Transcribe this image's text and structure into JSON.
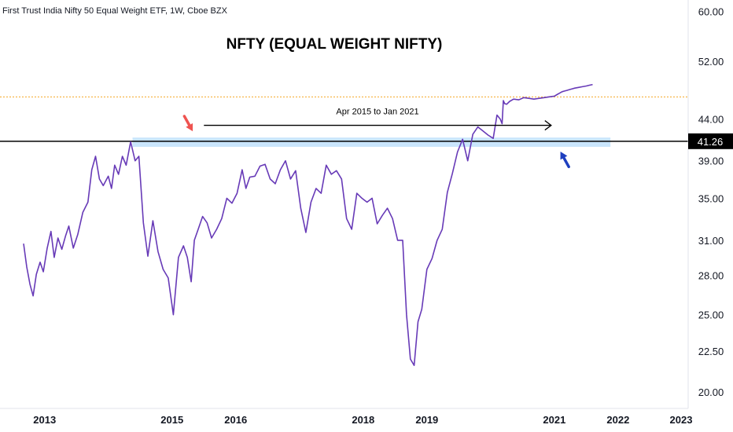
{
  "header": {
    "symbol_title": "First Trust India Nifty 50 Equal Weight ETF, 1W, Cboe BZX"
  },
  "chart_data": {
    "type": "line",
    "title": "NFTY (EQUAL WEIGHT NIFTY)",
    "y_scale": "log",
    "ylim": [
      19.6,
      61.2
    ],
    "xlim": [
      2012.3,
      2023.1
    ],
    "y_ticks": [
      "60.00",
      "52.00",
      "44.00",
      "39.00",
      "35.00",
      "31.00",
      "28.00",
      "25.00",
      "22.50",
      "20.00"
    ],
    "x_ticks": [
      "2013",
      "2015",
      "2016",
      "2018",
      "2019",
      "2021",
      "2022",
      "2023"
    ],
    "series": [
      {
        "color": "#673ab7",
        "x": [
          2012.67,
          2012.72,
          2012.77,
          2012.82,
          2012.87,
          2012.93,
          2012.98,
          2013.04,
          2013.1,
          2013.15,
          2013.21,
          2013.27,
          2013.33,
          2013.38,
          2013.45,
          2013.52,
          2013.6,
          2013.68,
          2013.74,
          2013.8,
          2013.86,
          2013.92,
          2014.0,
          2014.05,
          2014.1,
          2014.16,
          2014.22,
          2014.28,
          2014.35,
          2014.42,
          2014.48,
          2014.55,
          2014.62,
          2014.7,
          2014.78,
          2014.86,
          2014.94,
          2015.02,
          2015.1,
          2015.18,
          2015.24,
          2015.3,
          2015.35,
          2015.41,
          2015.48,
          2015.55,
          2015.62,
          2015.7,
          2015.78,
          2015.86,
          2015.94,
          2016.02,
          2016.1,
          2016.16,
          2016.22,
          2016.3,
          2016.38,
          2016.46,
          2016.54,
          2016.62,
          2016.7,
          2016.78,
          2016.86,
          2016.94,
          2017.02,
          2017.1,
          2017.18,
          2017.26,
          2017.34,
          2017.42,
          2017.5,
          2017.58,
          2017.66,
          2017.74,
          2017.82,
          2017.9,
          2017.98,
          2018.06,
          2018.14,
          2018.22,
          2018.3,
          2018.38,
          2018.46,
          2018.54,
          2018.62,
          2018.68,
          2018.74,
          2018.8,
          2018.86,
          2018.92,
          2019.0,
          2019.08,
          2019.16,
          2019.24,
          2019.32,
          2019.4,
          2019.48,
          2019.56,
          2019.64,
          2019.72,
          2019.8,
          2019.88,
          2019.96,
          2020.04,
          2020.1,
          2020.15,
          2020.18,
          2020.2,
          2020.22,
          2020.25,
          2020.3,
          2020.36,
          2020.44,
          2020.52,
          2020.6,
          2020.68,
          2020.76,
          2020.84,
          2020.92,
          2021.0,
          2021.04,
          2021.08,
          2021.12,
          2021.16,
          2021.2,
          2021.24,
          2021.28,
          2021.32,
          2021.38,
          2021.44,
          2021.5,
          2021.55,
          2021.6
        ],
        "y": [
          30.7,
          28.7,
          27.3,
          26.4,
          28.1,
          29.1,
          28.3,
          30.3,
          31.8,
          29.5,
          31.2,
          30.2,
          31.4,
          32.3,
          30.3,
          31.5,
          33.6,
          34.6,
          38.0,
          39.5,
          37.0,
          36.3,
          37.3,
          36.0,
          38.5,
          37.5,
          39.5,
          38.5,
          41.2,
          39.0,
          39.5,
          32.6,
          29.6,
          32.8,
          30.0,
          28.5,
          27.8,
          25.0,
          29.5,
          30.5,
          29.5,
          27.5,
          31.0,
          32.0,
          33.2,
          32.6,
          31.2,
          32.0,
          33.0,
          35.0,
          34.5,
          35.5,
          38.0,
          36.0,
          37.2,
          37.3,
          38.4,
          38.6,
          37.0,
          36.5,
          38.0,
          39.0,
          37.0,
          37.9,
          34.0,
          31.7,
          34.6,
          36.0,
          35.5,
          38.5,
          37.5,
          37.9,
          37.0,
          33.0,
          32.0,
          35.5,
          35.0,
          34.6,
          35.0,
          32.5,
          33.3,
          34.0,
          33.0,
          31.0,
          31.0,
          25.0,
          22.0,
          21.6,
          24.5,
          25.4,
          28.5,
          29.4,
          31.0,
          32.0,
          35.6,
          37.6,
          40.0,
          41.5,
          39.0,
          42.1,
          43.0,
          42.5,
          42.0,
          41.6,
          44.5,
          44.0,
          43.4,
          46.4,
          46.0,
          45.9,
          46.3,
          46.6,
          46.5,
          46.8,
          46.7,
          46.6,
          46.7,
          46.8,
          46.9,
          47.0,
          47.2,
          47.4,
          47.6,
          47.7,
          47.8,
          47.9,
          48.0,
          48.1,
          48.2,
          48.3,
          48.4,
          48.5,
          48.6
        ]
      }
    ],
    "horizontal_line": {
      "value": 41.26,
      "label": "41.26",
      "color": "#000000"
    },
    "dotted_line": {
      "value": 46.9,
      "color": "#f5a623"
    },
    "support_zone": {
      "y_low": 40.6,
      "y_high": 41.7,
      "x_start": 2014.38,
      "x_end": 2021.88,
      "color": "#bbdefb"
    },
    "annotations": [
      {
        "type": "arrow-text",
        "text": "Apr 2015 to Jan 2021",
        "x_start": 2015.5,
        "x_end": 2020.95,
        "y": 43.2
      },
      {
        "type": "arrow",
        "color": "#ef5350",
        "x": 2015.3,
        "y": 41.7,
        "direction": "down-right"
      },
      {
        "type": "arrow",
        "color": "#1e3fbf",
        "x": 2021.12,
        "y": 39.5,
        "direction": "up-left"
      }
    ]
  }
}
